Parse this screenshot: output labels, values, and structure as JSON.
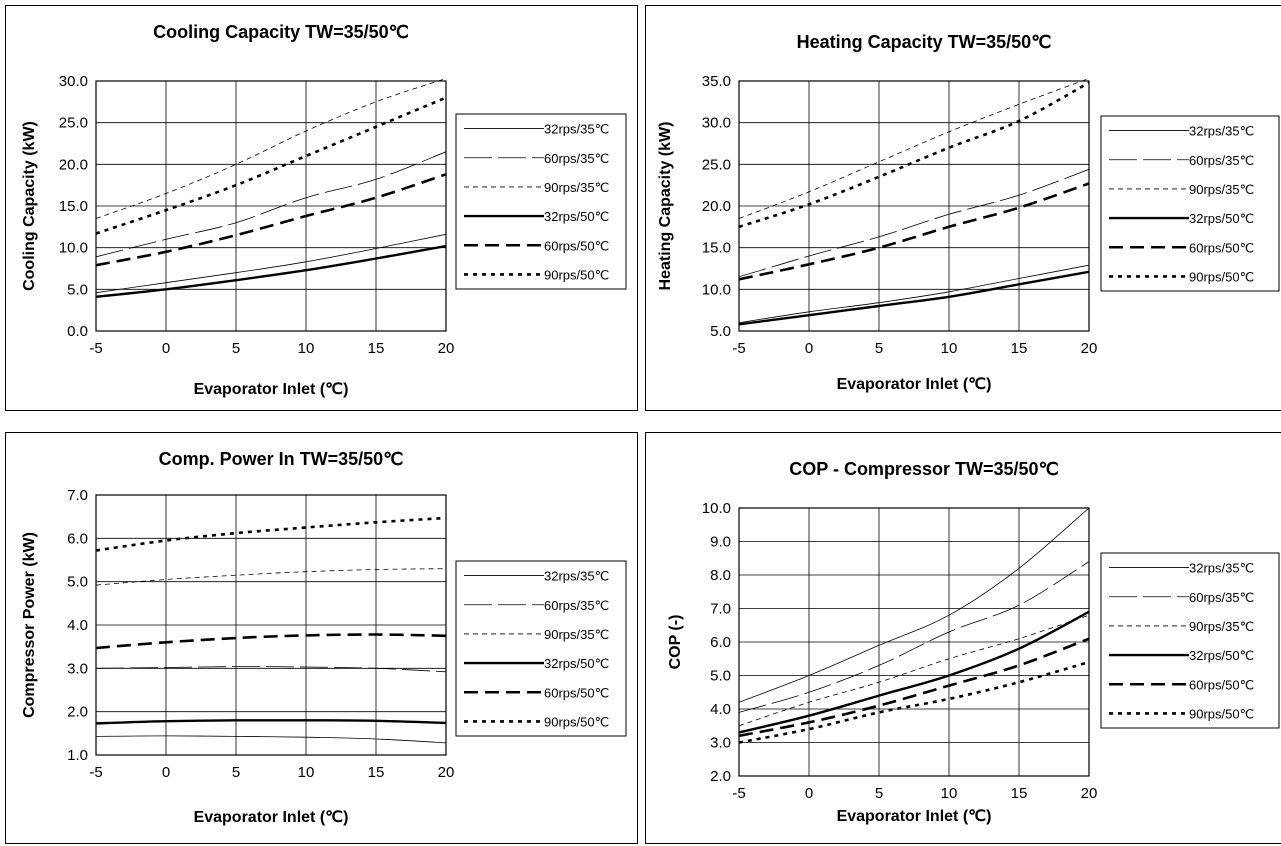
{
  "chart_data": [
    {
      "type": "line",
      "title": "Cooling Capacity TW=35/50℃",
      "xlabel": "Evaporator Inlet (℃)",
      "ylabel": "Cooling Capacity (kW)",
      "xlim": [
        -5,
        20
      ],
      "ylim": [
        0,
        30
      ],
      "xticks": [
        "-5",
        "0",
        "5",
        "10",
        "15",
        "20"
      ],
      "yticks": [
        "0.0",
        "5.0",
        "10.0",
        "15.0",
        "20.0",
        "25.0",
        "30.0"
      ],
      "grid": true,
      "legend": "right",
      "x": [
        -5,
        0,
        5,
        10,
        15,
        20
      ],
      "series": [
        {
          "name": "32rps/35℃",
          "values": [
            4.6,
            5.8,
            7.0,
            8.3,
            9.9,
            11.6
          ]
        },
        {
          "name": "60rps/35℃",
          "values": [
            8.9,
            11.0,
            13.0,
            16.0,
            18.2,
            21.5
          ]
        },
        {
          "name": "90rps/35℃",
          "values": [
            13.5,
            16.5,
            20.0,
            24.0,
            27.5,
            30.3
          ]
        },
        {
          "name": "32rps/50℃",
          "values": [
            4.1,
            5.0,
            6.1,
            7.3,
            8.7,
            10.2
          ]
        },
        {
          "name": "60rps/50℃",
          "values": [
            7.9,
            9.5,
            11.5,
            13.8,
            16.0,
            18.8
          ]
        },
        {
          "name": "90rps/50℃",
          "values": [
            11.7,
            14.5,
            17.5,
            21.0,
            24.5,
            28.0
          ]
        }
      ]
    },
    {
      "type": "line",
      "title": "Heating Capacity TW=35/50℃",
      "xlabel": "Evaporator Inlet (℃)",
      "ylabel": "Heating Capacity (kW)",
      "xlim": [
        -5,
        20
      ],
      "ylim": [
        5,
        35
      ],
      "xticks": [
        "-5",
        "0",
        "5",
        "10",
        "15",
        "20"
      ],
      "yticks": [
        "5.0",
        "10.0",
        "15.0",
        "20.0",
        "25.0",
        "30.0",
        "35.0"
      ],
      "grid": true,
      "legend": "right",
      "x": [
        -5,
        0,
        5,
        10,
        15,
        20
      ],
      "series": [
        {
          "name": "32rps/35℃",
          "values": [
            6.0,
            7.3,
            8.4,
            9.7,
            11.3,
            12.9
          ]
        },
        {
          "name": "60rps/35℃",
          "values": [
            11.5,
            14.0,
            16.3,
            19.0,
            21.3,
            24.4
          ]
        },
        {
          "name": "90rps/35℃",
          "values": [
            18.5,
            21.7,
            25.3,
            28.9,
            32.2,
            35.3
          ]
        },
        {
          "name": "32rps/50℃",
          "values": [
            5.8,
            6.9,
            8.0,
            9.1,
            10.6,
            12.1
          ]
        },
        {
          "name": "60rps/50℃",
          "values": [
            11.2,
            13.0,
            15.0,
            17.5,
            19.8,
            22.7
          ]
        },
        {
          "name": "90rps/50℃",
          "values": [
            17.5,
            20.2,
            23.5,
            27.0,
            30.2,
            34.8
          ]
        }
      ]
    },
    {
      "type": "line",
      "title": "Comp. Power In TW=35/50℃",
      "xlabel": "Evaporator Inlet (℃)",
      "ylabel": "Compressor Power (kW)",
      "xlim": [
        -5,
        20
      ],
      "ylim": [
        1,
        7
      ],
      "xticks": [
        "-5",
        "0",
        "5",
        "10",
        "15",
        "20"
      ],
      "yticks": [
        "1.0",
        "2.0",
        "3.0",
        "4.0",
        "5.0",
        "6.0",
        "7.0"
      ],
      "grid": true,
      "legend": "right",
      "x": [
        -5,
        0,
        5,
        10,
        15,
        20
      ],
      "series": [
        {
          "name": "32rps/35℃",
          "values": [
            1.43,
            1.44,
            1.43,
            1.41,
            1.37,
            1.28
          ]
        },
        {
          "name": "60rps/35℃",
          "values": [
            3.0,
            3.02,
            3.04,
            3.03,
            3.0,
            2.92
          ]
        },
        {
          "name": "90rps/35℃",
          "values": [
            4.92,
            5.05,
            5.15,
            5.23,
            5.28,
            5.3
          ]
        },
        {
          "name": "32rps/50℃",
          "values": [
            1.73,
            1.78,
            1.8,
            1.8,
            1.79,
            1.74
          ]
        },
        {
          "name": "60rps/50℃",
          "values": [
            3.47,
            3.6,
            3.7,
            3.76,
            3.78,
            3.75
          ]
        },
        {
          "name": "90rps/50℃",
          "values": [
            5.72,
            5.95,
            6.12,
            6.25,
            6.37,
            6.47
          ]
        }
      ]
    },
    {
      "type": "line",
      "title": "COP - Compressor TW=35/50℃",
      "xlabel": "Evaporator Inlet (℃)",
      "ylabel": "COP (-)",
      "xlim": [
        -5,
        20
      ],
      "ylim": [
        2,
        10
      ],
      "xticks": [
        "-5",
        "0",
        "5",
        "10",
        "15",
        "20"
      ],
      "yticks": [
        "2.0",
        "3.0",
        "4.0",
        "5.0",
        "6.0",
        "7.0",
        "8.0",
        "9.0",
        "10.0"
      ],
      "grid": true,
      "legend": "right",
      "x": [
        -5,
        0,
        5,
        10,
        15,
        20
      ],
      "series": [
        {
          "name": "32rps/35℃",
          "values": [
            4.2,
            5.0,
            5.9,
            6.8,
            8.2,
            10.0
          ]
        },
        {
          "name": "60rps/35℃",
          "values": [
            3.9,
            4.5,
            5.3,
            6.3,
            7.1,
            8.4
          ]
        },
        {
          "name": "90rps/35℃",
          "values": [
            3.5,
            4.2,
            4.8,
            5.5,
            6.1,
            6.8
          ]
        },
        {
          "name": "32rps/50℃",
          "values": [
            3.3,
            3.8,
            4.4,
            5.0,
            5.8,
            6.9
          ]
        },
        {
          "name": "60rps/50℃",
          "values": [
            3.2,
            3.6,
            4.1,
            4.7,
            5.3,
            6.1
          ]
        },
        {
          "name": "90rps/50℃",
          "values": [
            3.0,
            3.4,
            3.9,
            4.3,
            4.8,
            5.4
          ]
        }
      ]
    }
  ]
}
